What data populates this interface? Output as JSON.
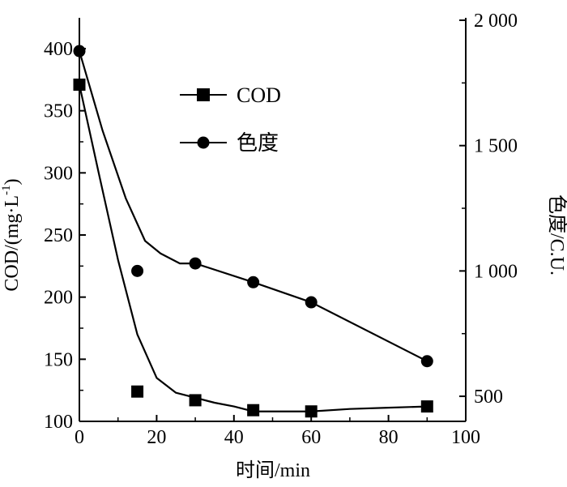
{
  "chart_data": {
    "type": "scatter",
    "xlabel": "时间/min",
    "ylabel_left": {
      "main": "COD/(mg·L",
      "sup": "-1",
      "close": ")"
    },
    "ylabel_right": "色度/C.U.",
    "xlim": [
      0,
      100
    ],
    "ylim_left": [
      100,
      420
    ],
    "ylim_right": [
      400,
      2000
    ],
    "x_ticks": [
      "0",
      "20",
      "40",
      "60",
      "80",
      "100"
    ],
    "y_left_ticks": [
      "100",
      "150",
      "200",
      "250",
      "300",
      "350",
      "400"
    ],
    "y_right_ticks": [
      "500",
      "1 000",
      "1 500",
      "2 000"
    ],
    "grid": false,
    "legend_position": "upper-center",
    "series": [
      {
        "name": "COD",
        "axis": "left",
        "marker": "square",
        "x": [
          0,
          15,
          30,
          45,
          60,
          90
        ],
        "y": [
          371,
          124,
          117,
          109,
          108,
          112
        ],
        "fit_x": [
          0,
          5,
          10,
          15,
          20,
          25,
          30,
          35,
          40,
          45,
          50,
          55,
          60,
          70,
          80,
          90
        ],
        "fit_y": [
          371,
          300,
          230,
          170,
          135,
          123,
          119,
          115,
          112,
          108,
          108,
          108,
          108,
          110,
          111,
          112
        ]
      },
      {
        "name": "色度",
        "axis": "right",
        "marker": "circle",
        "x": [
          0,
          15,
          30,
          45,
          60,
          90
        ],
        "y": [
          1877,
          1000,
          1030,
          955,
          875,
          640
        ],
        "fit_x": [
          0,
          6,
          12,
          17,
          21,
          26,
          30,
          45,
          60,
          90
        ],
        "fit_y": [
          1877,
          1560,
          1290,
          1120,
          1070,
          1030,
          1030,
          955,
          875,
          640
        ]
      }
    ]
  }
}
